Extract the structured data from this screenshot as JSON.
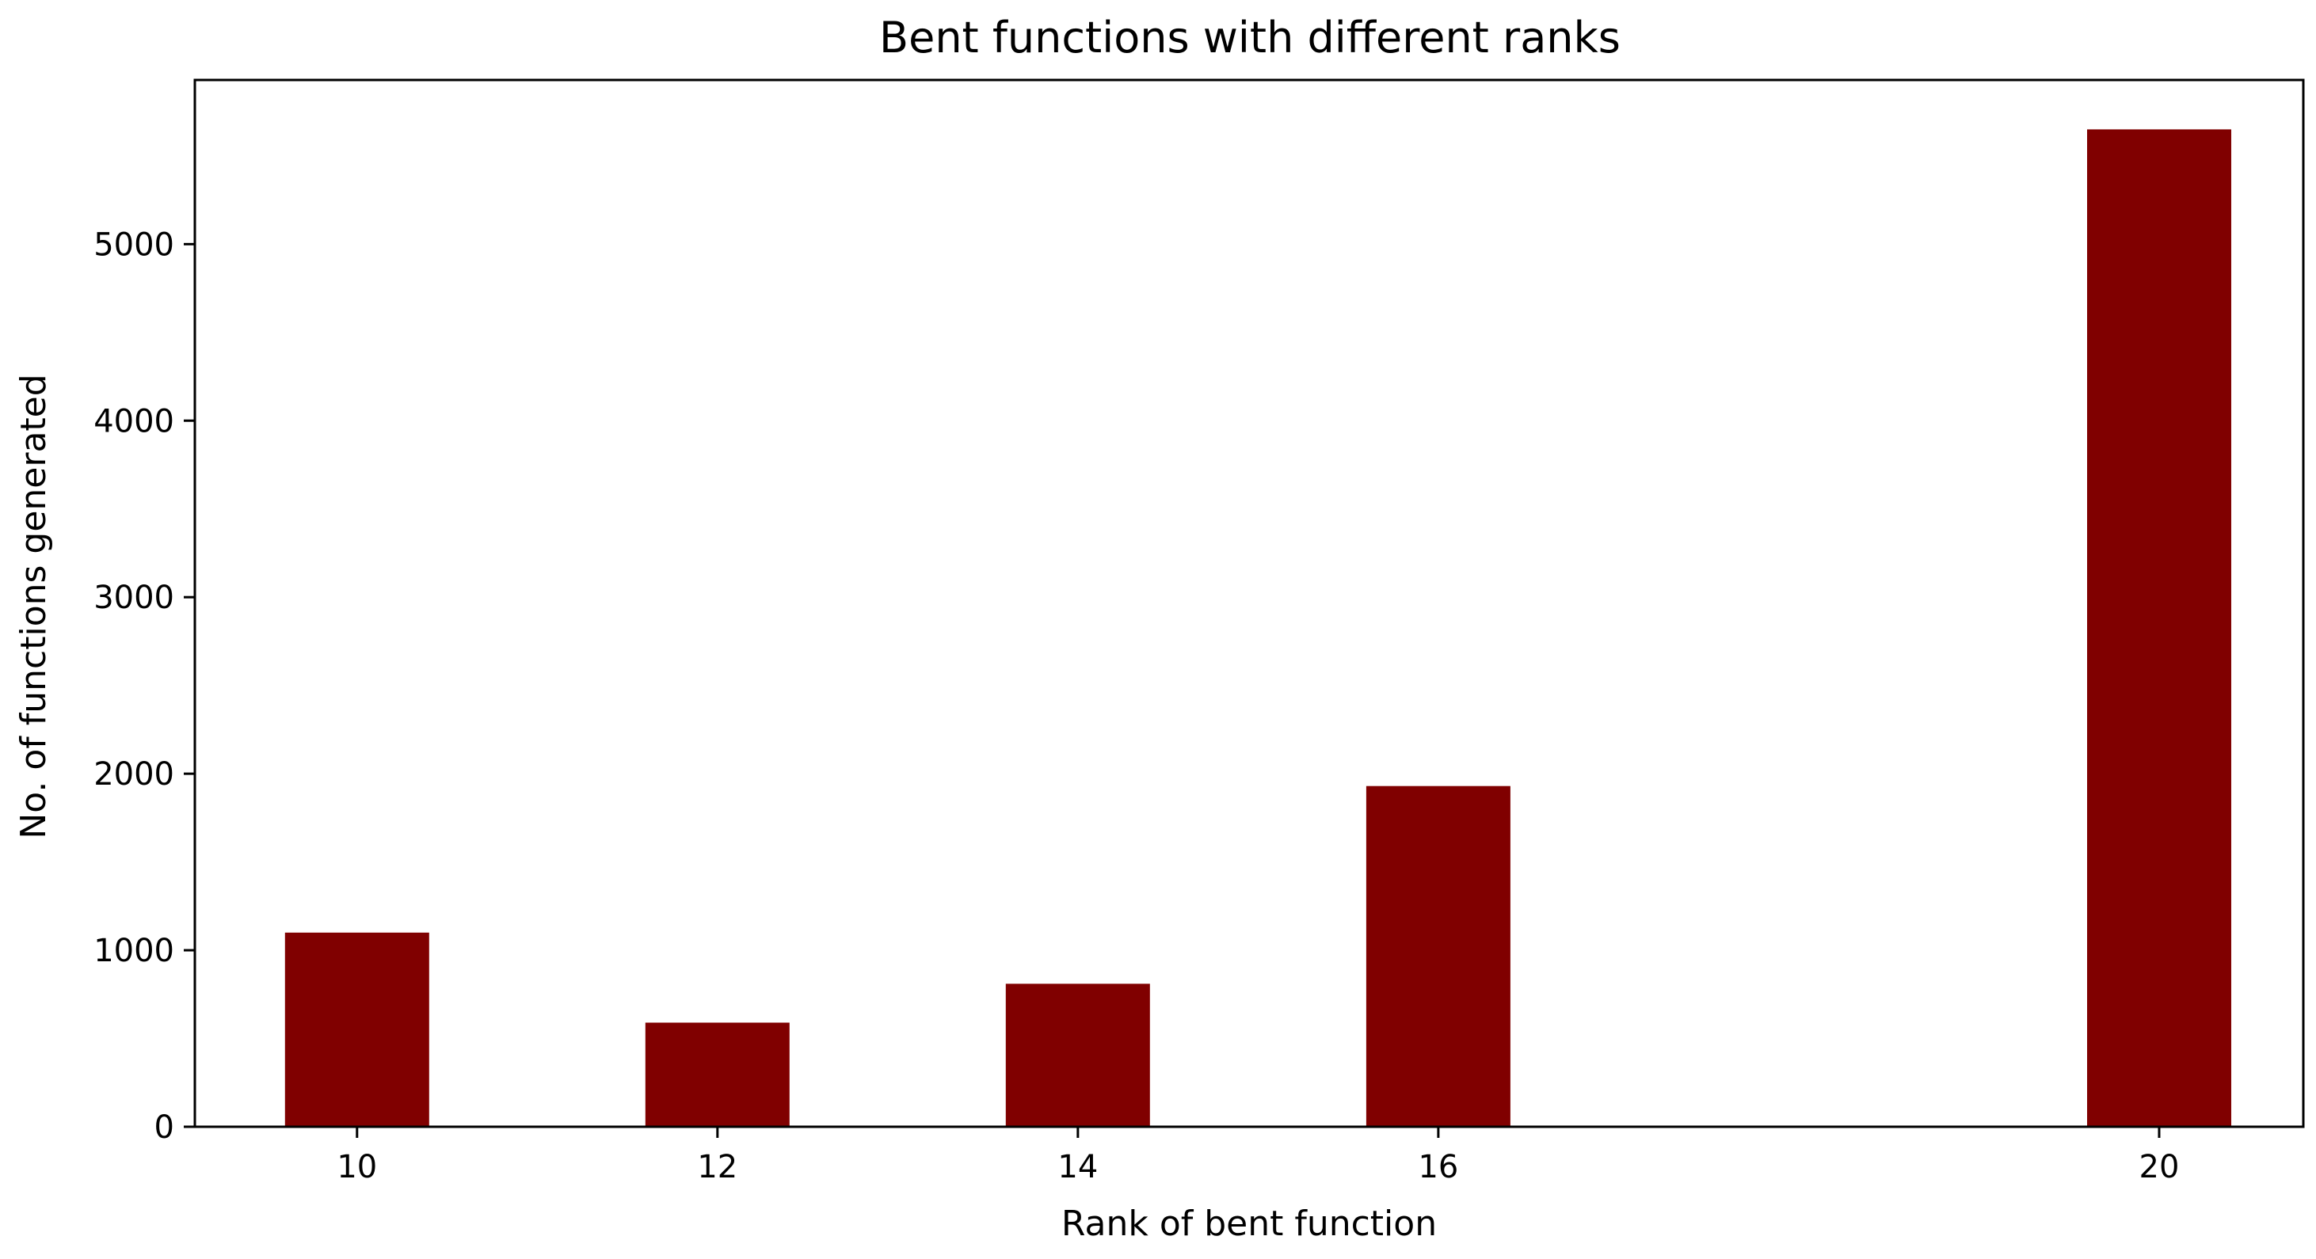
{
  "chart_data": {
    "type": "bar",
    "title": "Bent functions with different ranks",
    "xlabel": "Rank of bent function",
    "ylabel": "No. of functions generated",
    "categories": [
      "10",
      "12",
      "14",
      "16",
      "20"
    ],
    "values": [
      1100,
      590,
      810,
      1930,
      5650
    ],
    "yticks": [
      0,
      1000,
      2000,
      3000,
      4000,
      5000
    ],
    "ylim": [
      0,
      5930
    ],
    "grid": false,
    "legend": "none",
    "bar_color": "#800000"
  }
}
